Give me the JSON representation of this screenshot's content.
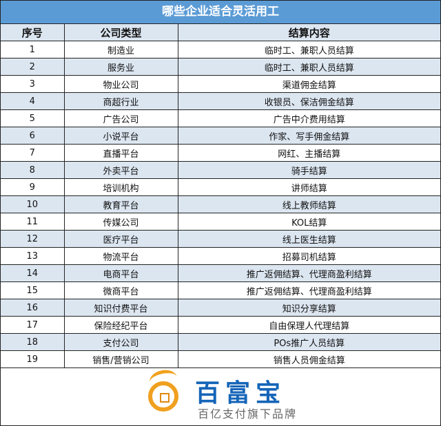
{
  "title": "哪些企业适合灵活用工",
  "headers": [
    "序号",
    "公司类型",
    "结算内容"
  ],
  "rows": [
    [
      "1",
      "制造业",
      "临时工、兼职人员结算"
    ],
    [
      "2",
      "服务业",
      "临时工、兼职人员结算"
    ],
    [
      "3",
      "物业公司",
      "渠道佣金结算"
    ],
    [
      "4",
      "商超行业",
      "收银员、保洁佣金结算"
    ],
    [
      "5",
      "广告公司",
      "广告中介费用结算"
    ],
    [
      "6",
      "小说平台",
      "作家、写手佣金结算"
    ],
    [
      "7",
      "直播平台",
      "网红、主播结算"
    ],
    [
      "8",
      "外卖平台",
      "骑手结算"
    ],
    [
      "9",
      "培训机构",
      "讲师结算"
    ],
    [
      "10",
      "教育平台",
      "线上教师结算"
    ],
    [
      "11",
      "传媒公司",
      "KOL结算"
    ],
    [
      "12",
      "医疗平台",
      "线上医生结算"
    ],
    [
      "13",
      "物流平台",
      "招募司机结算"
    ],
    [
      "14",
      "电商平台",
      "推广返佣结算、代理商盈利结算"
    ],
    [
      "15",
      "微商平台",
      "推广返佣结算、代理商盈利结算"
    ],
    [
      "16",
      "知识付费平台",
      "知识分享结算"
    ],
    [
      "17",
      "保险经纪平台",
      "自由保理人代理结算"
    ],
    [
      "18",
      "支付公司",
      "POs推广人员结算"
    ],
    [
      "19",
      "销售/营销公司",
      "销售人员佣金结算"
    ]
  ],
  "logo": {
    "brand": "百富宝",
    "tagline": "百亿支付旗下品牌"
  },
  "colors": {
    "title_bg": "#5b9bd5",
    "stripe": "#dce6f1",
    "brand": "#1565b8",
    "coin": "#f0a020"
  }
}
